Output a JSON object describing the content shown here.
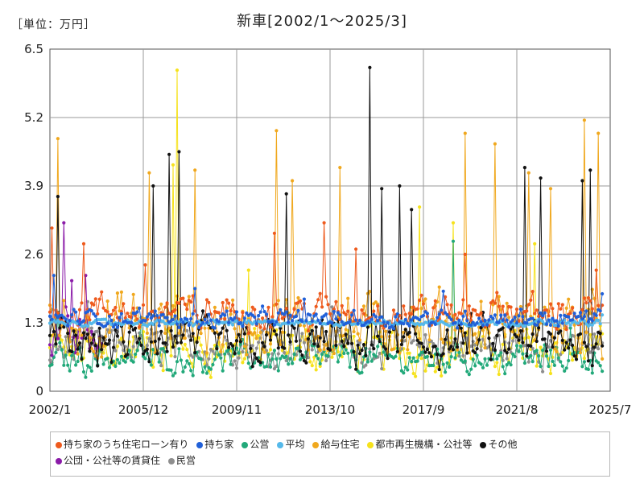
{
  "unit_label": "［単位：万円］",
  "chart_data": {
    "type": "line",
    "title": "新車[2002/1〜2025/3]",
    "xlabel": "",
    "ylabel": "",
    "x_start": "2002/1",
    "x_end": "2025/7",
    "x_tick_labels": [
      "2002/1",
      "2005/12",
      "2009/11",
      "2013/10",
      "2017/9",
      "2021/8",
      "2025/7"
    ],
    "y_ticks": [
      0,
      1.3,
      2.6,
      3.9,
      5.2,
      6.5
    ],
    "ylim": [
      0,
      6.5
    ],
    "grid": true,
    "legend_position": "bottom",
    "series": [
      {
        "name": "持ち家のうち住宅ローン有り",
        "color": "#ee5a1d",
        "base": 1.5,
        "amp": 0.42,
        "peaks": [
          [
            2002.1,
            3.1
          ],
          [
            2003.4,
            2.8
          ],
          [
            2006.0,
            2.4
          ],
          [
            2011.4,
            3.0
          ],
          [
            2013.5,
            3.2
          ],
          [
            2014.8,
            2.7
          ],
          [
            2019.4,
            2.6
          ],
          [
            2024.9,
            2.3
          ]
        ]
      },
      {
        "name": "持ち家",
        "color": "#2060d8",
        "base": 1.38,
        "amp": 0.22,
        "peaks": [
          [
            2002.2,
            2.2
          ],
          [
            2008.1,
            1.95
          ],
          [
            2012.7,
            1.75
          ],
          [
            2018.5,
            1.9
          ],
          [
            2025.2,
            1.85
          ]
        ]
      },
      {
        "name": "公営",
        "color": "#22a97a",
        "base": 0.62,
        "amp": 0.35,
        "peaks": [
          [
            2002.3,
            1.5
          ],
          [
            2005.8,
            1.4
          ],
          [
            2012.9,
            1.3
          ],
          [
            2018.9,
            2.85
          ],
          [
            2023.8,
            1.2
          ]
        ]
      },
      {
        "name": "平均",
        "color": "#55b9ea",
        "base": 1.3,
        "amp": 0.07,
        "peaks": [
          [
            2025.2,
            1.45
          ]
        ]
      },
      {
        "name": "給与住宅",
        "color": "#f0a81e",
        "base": 1.25,
        "amp": 0.75,
        "peaks": [
          [
            2002.3,
            4.8
          ],
          [
            2006.2,
            4.15
          ],
          [
            2008.1,
            4.2
          ],
          [
            2011.5,
            4.95
          ],
          [
            2012.2,
            4.0
          ],
          [
            2014.2,
            4.25
          ],
          [
            2019.4,
            4.9
          ],
          [
            2020.7,
            4.7
          ],
          [
            2022.1,
            4.15
          ],
          [
            2023.0,
            3.85
          ],
          [
            2024.4,
            5.15
          ],
          [
            2025.0,
            4.9
          ]
        ]
      },
      {
        "name": "都市再生機構・公社等",
        "color": "#f6e21c",
        "base": 0.8,
        "amp": 0.55,
        "peaks": [
          [
            2007.3,
            6.1
          ],
          [
            2007.2,
            4.3
          ],
          [
            2010.3,
            2.3
          ],
          [
            2017.5,
            3.5
          ],
          [
            2018.9,
            3.2
          ],
          [
            2022.3,
            2.8
          ]
        ]
      },
      {
        "name": "その他",
        "color": "#111111",
        "base": 0.9,
        "amp": 0.6,
        "peaks": [
          [
            2002.3,
            3.7
          ],
          [
            2006.3,
            3.9
          ],
          [
            2007.0,
            4.5
          ],
          [
            2007.4,
            4.55
          ],
          [
            2011.9,
            3.75
          ],
          [
            2015.4,
            6.15
          ],
          [
            2015.9,
            3.85
          ],
          [
            2016.7,
            3.9
          ],
          [
            2017.2,
            3.45
          ],
          [
            2021.9,
            4.25
          ],
          [
            2022.6,
            4.05
          ],
          [
            2024.3,
            4.0
          ],
          [
            2024.7,
            4.2
          ]
        ]
      },
      {
        "name": "公団・公社等の賃貸住",
        "color": "#8a1aa8",
        "base": 1.0,
        "amp": 0.6,
        "end": 2004.3,
        "peaks": [
          [
            2002.6,
            3.2
          ],
          [
            2002.9,
            2.1
          ],
          [
            2003.5,
            2.2
          ]
        ]
      },
      {
        "name": "民営",
        "color": "#8e8e8e",
        "base": 0.85,
        "amp": 0.45,
        "peaks": [
          [
            2003.6,
            1.7
          ],
          [
            2013.8,
            1.6
          ],
          [
            2018.3,
            1.5
          ]
        ]
      }
    ]
  }
}
